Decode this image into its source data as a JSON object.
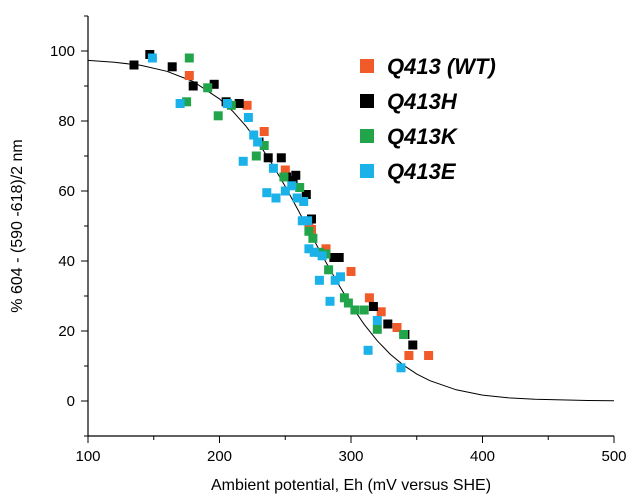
{
  "chart_data": {
    "type": "scatter",
    "title": "",
    "xlabel": "Ambient potential, Eh (mV versus SHE)",
    "ylabel": "% 604 - (590 -618)/2 nm",
    "xlim": [
      100,
      500
    ],
    "ylim": [
      -10,
      110
    ],
    "xticks": [
      100,
      200,
      300,
      400,
      500
    ],
    "yticks": [
      0,
      20,
      40,
      60,
      80,
      100
    ],
    "grid": false,
    "legend_position": "top-right",
    "fit_curve": {
      "name": "",
      "color": "#000000",
      "x": [
        100,
        120,
        140,
        160,
        180,
        200,
        210,
        220,
        230,
        240,
        250,
        260,
        270,
        280,
        290,
        300,
        310,
        320,
        330,
        340,
        350,
        360,
        380,
        400,
        420,
        440,
        460,
        480,
        500
      ],
      "y": [
        97.3,
        96.8,
        95.9,
        94.2,
        91.3,
        86.3,
        82.8,
        78.6,
        73.5,
        67.7,
        61.3,
        54.4,
        47.3,
        40.3,
        33.6,
        27.4,
        21.9,
        17.2,
        13.3,
        10.2,
        7.7,
        5.8,
        3.2,
        1.7,
        0.9,
        0.5,
        0.3,
        0.15,
        0.08
      ]
    },
    "series": [
      {
        "name": "Q413 (WT)",
        "color": "#f15a29",
        "points": [
          [
            177,
            93
          ],
          [
            221,
            84.5
          ],
          [
            234,
            77
          ],
          [
            250,
            66
          ],
          [
            268,
            51
          ],
          [
            270,
            49
          ],
          [
            281,
            43.5
          ],
          [
            300,
            37
          ],
          [
            314,
            29.5
          ],
          [
            323,
            25.5
          ],
          [
            335,
            21
          ],
          [
            344,
            13
          ],
          [
            359,
            13
          ]
        ]
      },
      {
        "name": "Q413H",
        "color": "#000000",
        "points": [
          [
            135,
            96
          ],
          [
            147,
            99
          ],
          [
            164,
            95.5
          ],
          [
            180,
            90
          ],
          [
            196,
            90.5
          ],
          [
            205,
            85.5
          ],
          [
            215,
            85
          ],
          [
            230,
            74
          ],
          [
            237,
            69.5
          ],
          [
            247,
            69.5
          ],
          [
            251,
            64
          ],
          [
            256,
            63
          ],
          [
            258,
            64.5
          ],
          [
            266,
            59
          ],
          [
            270,
            52
          ],
          [
            287,
            41
          ],
          [
            291,
            41
          ],
          [
            317,
            27
          ],
          [
            328,
            22
          ],
          [
            341,
            19
          ],
          [
            347,
            16
          ]
        ]
      },
      {
        "name": "Q413K",
        "color": "#22a54a",
        "points": [
          [
            175,
            85.5
          ],
          [
            177,
            98
          ],
          [
            191,
            89.5
          ],
          [
            199,
            81.5
          ],
          [
            209,
            84.5
          ],
          [
            228,
            70
          ],
          [
            234,
            73
          ],
          [
            249,
            64
          ],
          [
            261,
            61
          ],
          [
            268,
            48.5
          ],
          [
            271,
            46.5
          ],
          [
            276,
            42.5
          ],
          [
            281,
            42
          ],
          [
            283,
            37.5
          ],
          [
            295,
            29.5
          ],
          [
            298,
            28
          ],
          [
            303,
            26
          ],
          [
            310,
            26
          ],
          [
            320,
            20.5
          ],
          [
            340,
            19
          ]
        ]
      },
      {
        "name": "Q413E",
        "color": "#1ab2e8",
        "points": [
          [
            149,
            98
          ],
          [
            170,
            85
          ],
          [
            206,
            85
          ],
          [
            218,
            68.5
          ],
          [
            222,
            81
          ],
          [
            226,
            76
          ],
          [
            229,
            74
          ],
          [
            236,
            59.5
          ],
          [
            241,
            66.5
          ],
          [
            243,
            58
          ],
          [
            250,
            60
          ],
          [
            255,
            61.5
          ],
          [
            259,
            58
          ],
          [
            263,
            51.5
          ],
          [
            264,
            57
          ],
          [
            267,
            51.5
          ],
          [
            268,
            43.5
          ],
          [
            272,
            42.5
          ],
          [
            276,
            34.5
          ],
          [
            278,
            41.5
          ],
          [
            284,
            28.5
          ],
          [
            288,
            34.5
          ],
          [
            292,
            35.5
          ],
          [
            313,
            14.5
          ],
          [
            320,
            23
          ],
          [
            338,
            9.5
          ]
        ]
      }
    ]
  }
}
